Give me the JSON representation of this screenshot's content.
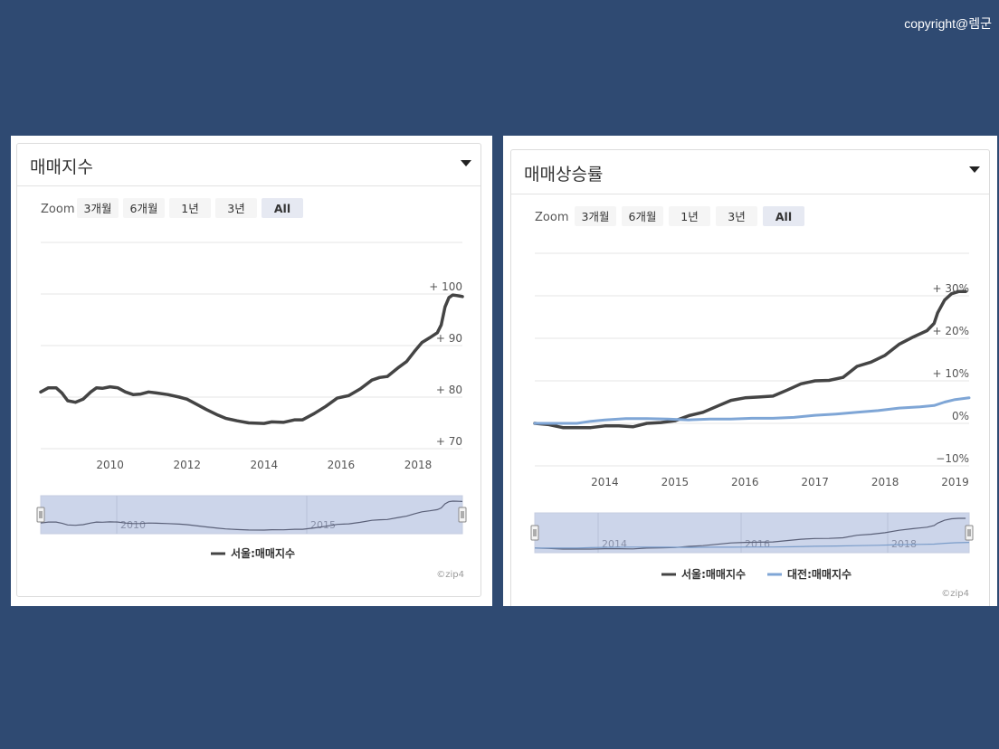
{
  "copyright": "copyright@렘군",
  "zoom_label": "Zoom",
  "zoom_buttons": [
    "3개월",
    "6개월",
    "1년",
    "3년",
    "All"
  ],
  "zoom_selected": "All",
  "colors": {
    "background": "#2f4a72",
    "seoul": "#444444",
    "daejeon": "#7fa6d6",
    "navigator": "#ccd5ea"
  },
  "credit": "©zip4",
  "left_panel": {
    "title": "매매지수"
  },
  "right_panel": {
    "title": "매매상승률"
  },
  "chart_data": [
    {
      "type": "line",
      "title": "매매지수",
      "x_ticks": [
        "2010",
        "2012",
        "2014",
        "2016",
        "2018"
      ],
      "y_ticks": [
        "+ 70",
        "+ 80",
        "+ 90",
        "+ 100"
      ],
      "xlim": [
        2008.2,
        2019.15
      ],
      "ylim": [
        70,
        100
      ],
      "navigator_ticks": [
        "2010",
        "2015"
      ],
      "legend_position": "bottom",
      "series": [
        {
          "name": "서울:매매지수",
          "color": "#444444",
          "x": [
            2008.2,
            2008.4,
            2008.6,
            2008.75,
            2008.9,
            2009.1,
            2009.3,
            2009.5,
            2009.65,
            2009.8,
            2010.0,
            2010.2,
            2010.4,
            2010.6,
            2010.8,
            2011.0,
            2011.2,
            2011.5,
            2011.8,
            2012.0,
            2012.2,
            2012.5,
            2012.8,
            2013.0,
            2013.3,
            2013.6,
            2014.0,
            2014.2,
            2014.5,
            2014.8,
            2015.0,
            2015.3,
            2015.6,
            2015.9,
            2016.2,
            2016.5,
            2016.8,
            2017.0,
            2017.2,
            2017.5,
            2017.7,
            2017.9,
            2018.1,
            2018.3,
            2018.5,
            2018.6,
            2018.7,
            2018.8,
            2018.9,
            2019.0,
            2019.15
          ],
          "values": [
            81,
            81.8,
            81.8,
            80.8,
            79.3,
            79.0,
            79.6,
            81.0,
            81.8,
            81.7,
            82.0,
            81.8,
            81.0,
            80.5,
            80.6,
            81.0,
            80.8,
            80.5,
            80.0,
            79.6,
            78.8,
            77.6,
            76.5,
            75.9,
            75.4,
            75.0,
            74.9,
            75.2,
            75.1,
            75.6,
            75.6,
            76.8,
            78.2,
            79.8,
            80.3,
            81.6,
            83.3,
            83.8,
            84.0,
            85.8,
            86.9,
            88.8,
            90.6,
            91.5,
            92.5,
            94.0,
            97.5,
            99.3,
            99.8,
            99.7,
            99.5
          ]
        }
      ]
    },
    {
      "type": "line",
      "title": "매매상승률",
      "x_ticks": [
        "2014",
        "2015",
        "2016",
        "2017",
        "2018",
        "2019"
      ],
      "y_ticks": [
        "−10%",
        "0%",
        "+ 10%",
        "+ 20%",
        "+ 30%"
      ],
      "xlim": [
        2013.0,
        2019.2
      ],
      "ylim": [
        -10,
        30
      ],
      "navigator_ticks": [
        "2014",
        "2016",
        "2018"
      ],
      "legend_position": "bottom",
      "series": [
        {
          "name": "서울:매매지수",
          "color": "#444444",
          "x": [
            2013.0,
            2013.2,
            2013.4,
            2013.6,
            2013.8,
            2014.0,
            2014.2,
            2014.4,
            2014.6,
            2014.8,
            2015.0,
            2015.2,
            2015.4,
            2015.6,
            2015.8,
            2016.0,
            2016.2,
            2016.4,
            2016.6,
            2016.8,
            2017.0,
            2017.2,
            2017.4,
            2017.6,
            2017.8,
            2018.0,
            2018.2,
            2018.4,
            2018.6,
            2018.7,
            2018.75,
            2018.85,
            2018.95,
            2019.05,
            2019.15
          ],
          "values": [
            0,
            -0.3,
            -1.0,
            -1.0,
            -1.0,
            -0.6,
            -0.6,
            -0.8,
            0,
            0.2,
            0.6,
            1.8,
            2.6,
            4.0,
            5.4,
            6.0,
            6.2,
            6.4,
            7.8,
            9.3,
            10.0,
            10.1,
            10.8,
            13.4,
            14.4,
            16.0,
            18.6,
            20.3,
            21.8,
            23.5,
            26.0,
            29.0,
            30.5,
            31.0,
            31.0
          ]
        },
        {
          "name": "대전:매매지수",
          "color": "#7fa6d6",
          "x": [
            2013.0,
            2013.3,
            2013.6,
            2013.8,
            2014.0,
            2014.3,
            2014.6,
            2014.9,
            2015.2,
            2015.5,
            2015.8,
            2016.1,
            2016.4,
            2016.7,
            2017.0,
            2017.3,
            2017.6,
            2017.9,
            2018.2,
            2018.5,
            2018.7,
            2018.85,
            2019.0,
            2019.2
          ],
          "values": [
            0,
            0,
            0,
            0.5,
            0.8,
            1.1,
            1.1,
            1.0,
            0.8,
            1.0,
            1.0,
            1.2,
            1.2,
            1.4,
            1.9,
            2.2,
            2.6,
            3.0,
            3.6,
            3.9,
            4.2,
            5.0,
            5.6,
            6.0
          ]
        }
      ]
    }
  ]
}
